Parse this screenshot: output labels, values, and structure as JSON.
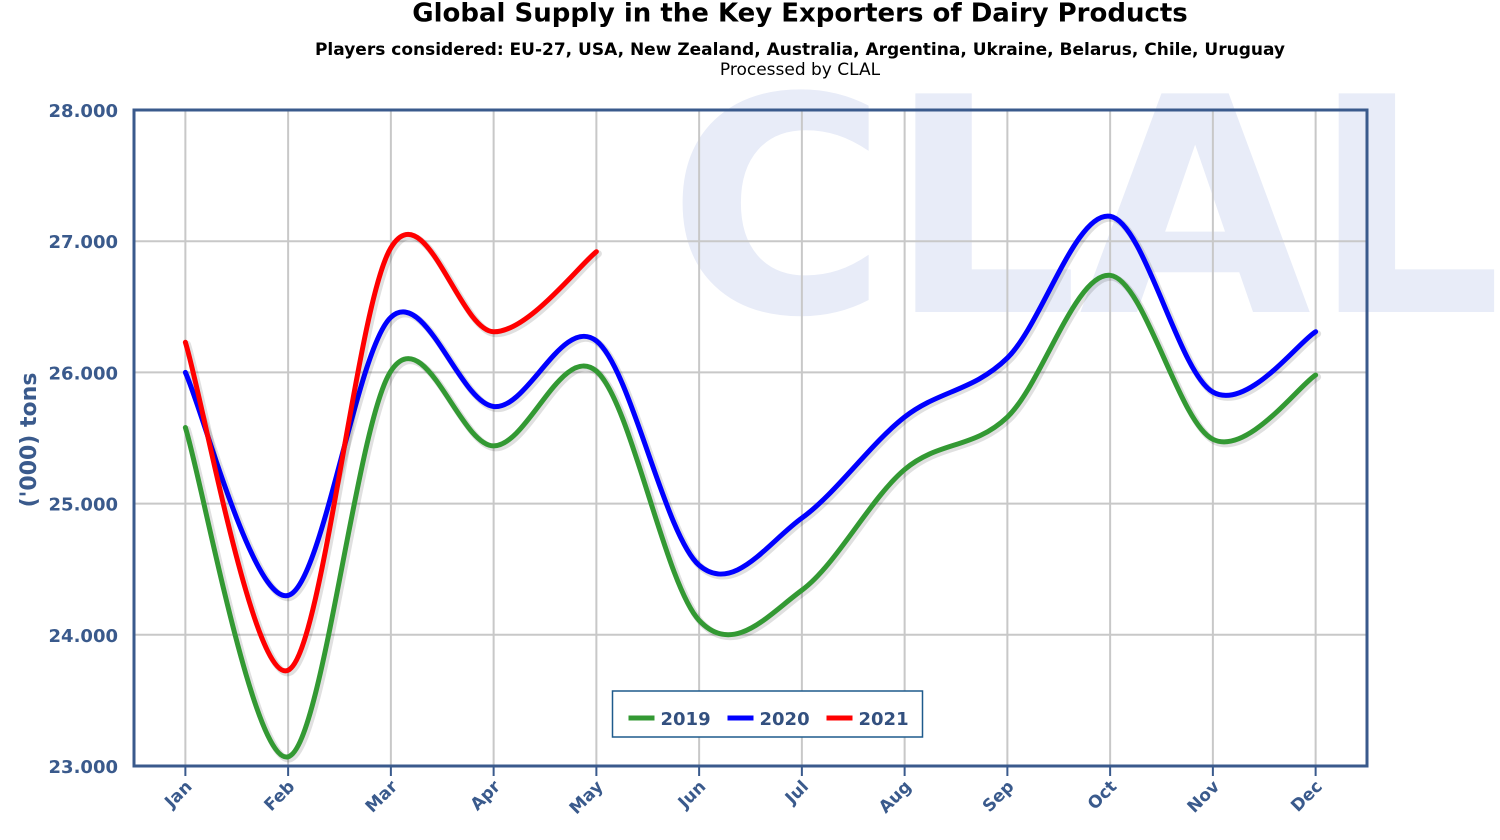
{
  "chart_data": {
    "type": "line",
    "title": "Global Supply in the Key Exporters of Dairy Products",
    "subtitle": "Players considered: EU-27, USA, New Zealand, Australia, Argentina, Ukraine, Belarus, Chile, Uruguay",
    "note": "Processed by CLAL",
    "watermark": "CLAL",
    "y_label": "('000) tons",
    "categories": [
      "Jan",
      "Feb",
      "Mar",
      "Apr",
      "May",
      "Jun",
      "Jul",
      "Aug",
      "Sep",
      "Oct",
      "Nov",
      "Dec"
    ],
    "series": [
      {
        "name": "2019",
        "color": "#339933",
        "values": [
          25580,
          23070,
          26010,
          25440,
          26010,
          24110,
          24340,
          25260,
          25660,
          26740,
          25490,
          25980
        ]
      },
      {
        "name": "2020",
        "color": "#0000ff",
        "values": [
          26000,
          24300,
          26420,
          25740,
          26240,
          24530,
          24890,
          25660,
          26110,
          27190,
          25850,
          26310
        ]
      },
      {
        "name": "2021",
        "color": "#ff0000",
        "values": [
          26230,
          23730,
          26950,
          26310,
          26920,
          null,
          null,
          null,
          null,
          null,
          null,
          null
        ]
      }
    ],
    "ylim": [
      23000,
      28000
    ],
    "yticks": [
      {
        "value": 23000,
        "label": "23.000"
      },
      {
        "value": 24000,
        "label": "24.000"
      },
      {
        "value": 25000,
        "label": "25.000"
      },
      {
        "value": 26000,
        "label": "26.000"
      },
      {
        "value": 27000,
        "label": "27.000"
      },
      {
        "value": 28000,
        "label": "28.000"
      }
    ],
    "grid": true,
    "legend": "bottom"
  }
}
